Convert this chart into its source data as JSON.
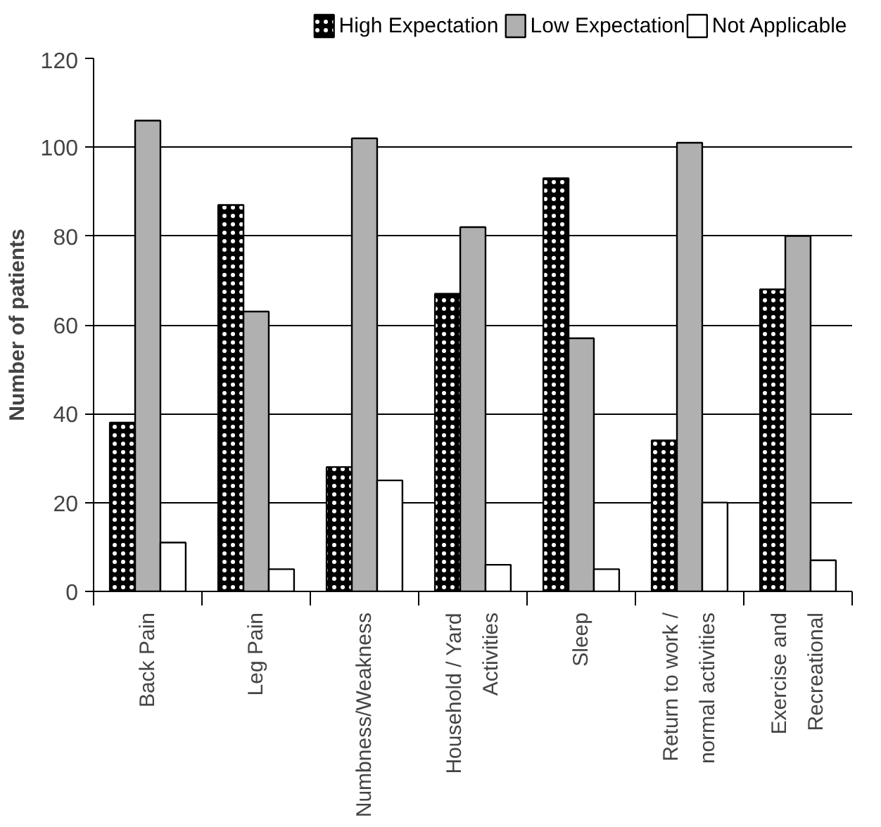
{
  "chart_data": {
    "type": "bar",
    "ylabel": "Number of patients",
    "categories": [
      "Back Pain",
      "Leg Pain",
      "Numbness/Weakness",
      "Household / Yard\nActivities",
      "Sleep",
      "Return to work /\nnormal activities",
      "Exercise and\nRecreational"
    ],
    "series": [
      {
        "name": "High Expectation",
        "color": "#000000",
        "values": [
          38,
          87,
          28,
          67,
          93,
          34,
          68
        ]
      },
      {
        "name": "Low Expectation",
        "color": "#b0b0b0",
        "values": [
          106,
          63,
          102,
          82,
          57,
          101,
          80
        ]
      },
      {
        "name": "Not Applicable",
        "color": "#ffffff",
        "values": [
          11,
          5,
          25,
          6,
          5,
          20,
          7
        ]
      }
    ],
    "ylim": [
      0,
      120
    ],
    "yticks": [
      0,
      20,
      40,
      60,
      80,
      100,
      120
    ],
    "grid": "y",
    "legend": "top"
  }
}
